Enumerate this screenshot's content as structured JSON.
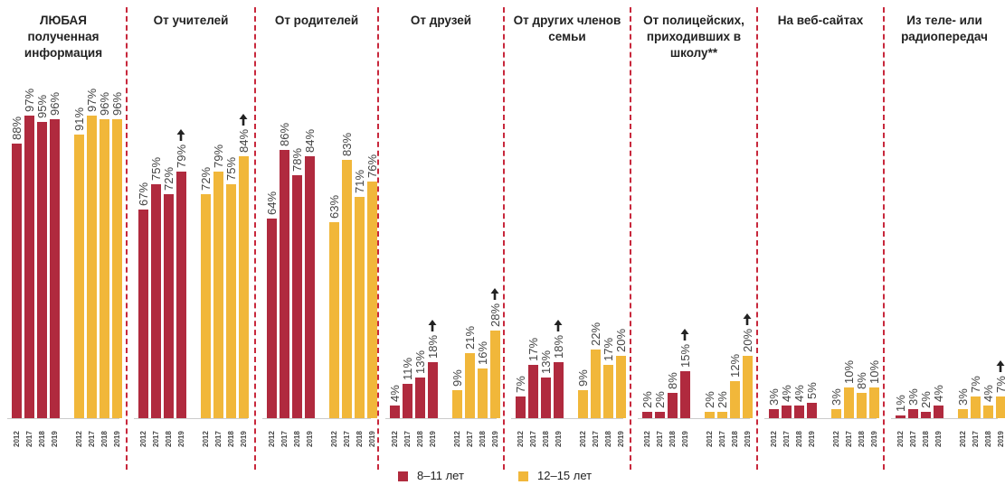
{
  "chart_data": {
    "type": "bar",
    "categories": [
      "2012",
      "2017",
      "2018",
      "2019"
    ],
    "series": [
      {
        "name": "8–11 лет",
        "color": "#b02a3e"
      },
      {
        "name": "12–15 лет",
        "color": "#f1b73a"
      }
    ],
    "ylim": [
      0,
      100
    ],
    "panels": [
      {
        "title": "ЛЮБАЯ полученная информация",
        "values": [
          [
            88,
            97,
            95,
            96
          ],
          [
            91,
            97,
            96,
            96
          ]
        ],
        "value_labels": [
          [
            "88%",
            "97%",
            "95%",
            "96%"
          ],
          [
            "91%",
            "97%",
            "96%",
            "96%"
          ]
        ],
        "up_arrows": [
          [
            false,
            false,
            false,
            false
          ],
          [
            false,
            false,
            false,
            false
          ]
        ]
      },
      {
        "title": "От учителей",
        "values": [
          [
            67,
            75,
            72,
            79
          ],
          [
            72,
            79,
            75,
            84
          ]
        ],
        "value_labels": [
          [
            "67%",
            "75%",
            "72%",
            "79%"
          ],
          [
            "72%",
            "79%",
            "75%",
            "84%"
          ]
        ],
        "up_arrows": [
          [
            false,
            false,
            false,
            true
          ],
          [
            false,
            false,
            false,
            true
          ]
        ]
      },
      {
        "title": "От родителей",
        "values": [
          [
            64,
            86,
            78,
            84
          ],
          [
            63,
            83,
            71,
            76
          ]
        ],
        "value_labels": [
          [
            "64%",
            "86%",
            "78%",
            "84%"
          ],
          [
            "63%",
            "83%",
            "71%",
            "76%"
          ]
        ],
        "up_arrows": [
          [
            false,
            false,
            false,
            false
          ],
          [
            false,
            false,
            false,
            false
          ]
        ]
      },
      {
        "title": "От друзей",
        "values": [
          [
            4,
            11,
            13,
            18
          ],
          [
            9,
            21,
            16,
            28
          ]
        ],
        "value_labels": [
          [
            "4%",
            "11%",
            "13%",
            "18%"
          ],
          [
            "9%",
            "21%",
            "16%",
            "28%"
          ]
        ],
        "up_arrows": [
          [
            false,
            false,
            false,
            true
          ],
          [
            false,
            false,
            false,
            true
          ]
        ]
      },
      {
        "title": "От других членов семьи",
        "values": [
          [
            7,
            17,
            13,
            18
          ],
          [
            9,
            22,
            17,
            20
          ]
        ],
        "value_labels": [
          [
            "7%",
            "17%",
            "13%",
            "18%"
          ],
          [
            "9%",
            "22%",
            "17%",
            "20%"
          ]
        ],
        "up_arrows": [
          [
            false,
            false,
            false,
            true
          ],
          [
            false,
            false,
            false,
            false
          ]
        ]
      },
      {
        "title": "От полицейских, приходивших в школу**",
        "values": [
          [
            2,
            2,
            8,
            15
          ],
          [
            2,
            2,
            12,
            20
          ]
        ],
        "value_labels": [
          [
            "2%",
            "2%",
            "8%",
            "15%"
          ],
          [
            "2%",
            "2%",
            "12%",
            "20%"
          ]
        ],
        "up_arrows": [
          [
            false,
            false,
            false,
            true
          ],
          [
            false,
            false,
            false,
            true
          ]
        ]
      },
      {
        "title": "На веб-сайтах",
        "values": [
          [
            3,
            4,
            4,
            5
          ],
          [
            3,
            10,
            8,
            10
          ]
        ],
        "value_labels": [
          [
            "3%",
            "4%",
            "4%",
            "5%"
          ],
          [
            "3%",
            "10%",
            "8%",
            "10%"
          ]
        ],
        "up_arrows": [
          [
            false,
            false,
            false,
            false
          ],
          [
            false,
            false,
            false,
            false
          ]
        ]
      },
      {
        "title": "Из теле- или радиопередач",
        "values": [
          [
            1,
            3,
            2,
            4
          ],
          [
            3,
            7,
            4,
            7
          ]
        ],
        "value_labels": [
          [
            "1%",
            "3%",
            "2%",
            "4%"
          ],
          [
            "3%",
            "7%",
            "4%",
            "7%"
          ]
        ],
        "up_arrows": [
          [
            false,
            false,
            false,
            false
          ],
          [
            false,
            false,
            false,
            true
          ]
        ]
      }
    ]
  }
}
